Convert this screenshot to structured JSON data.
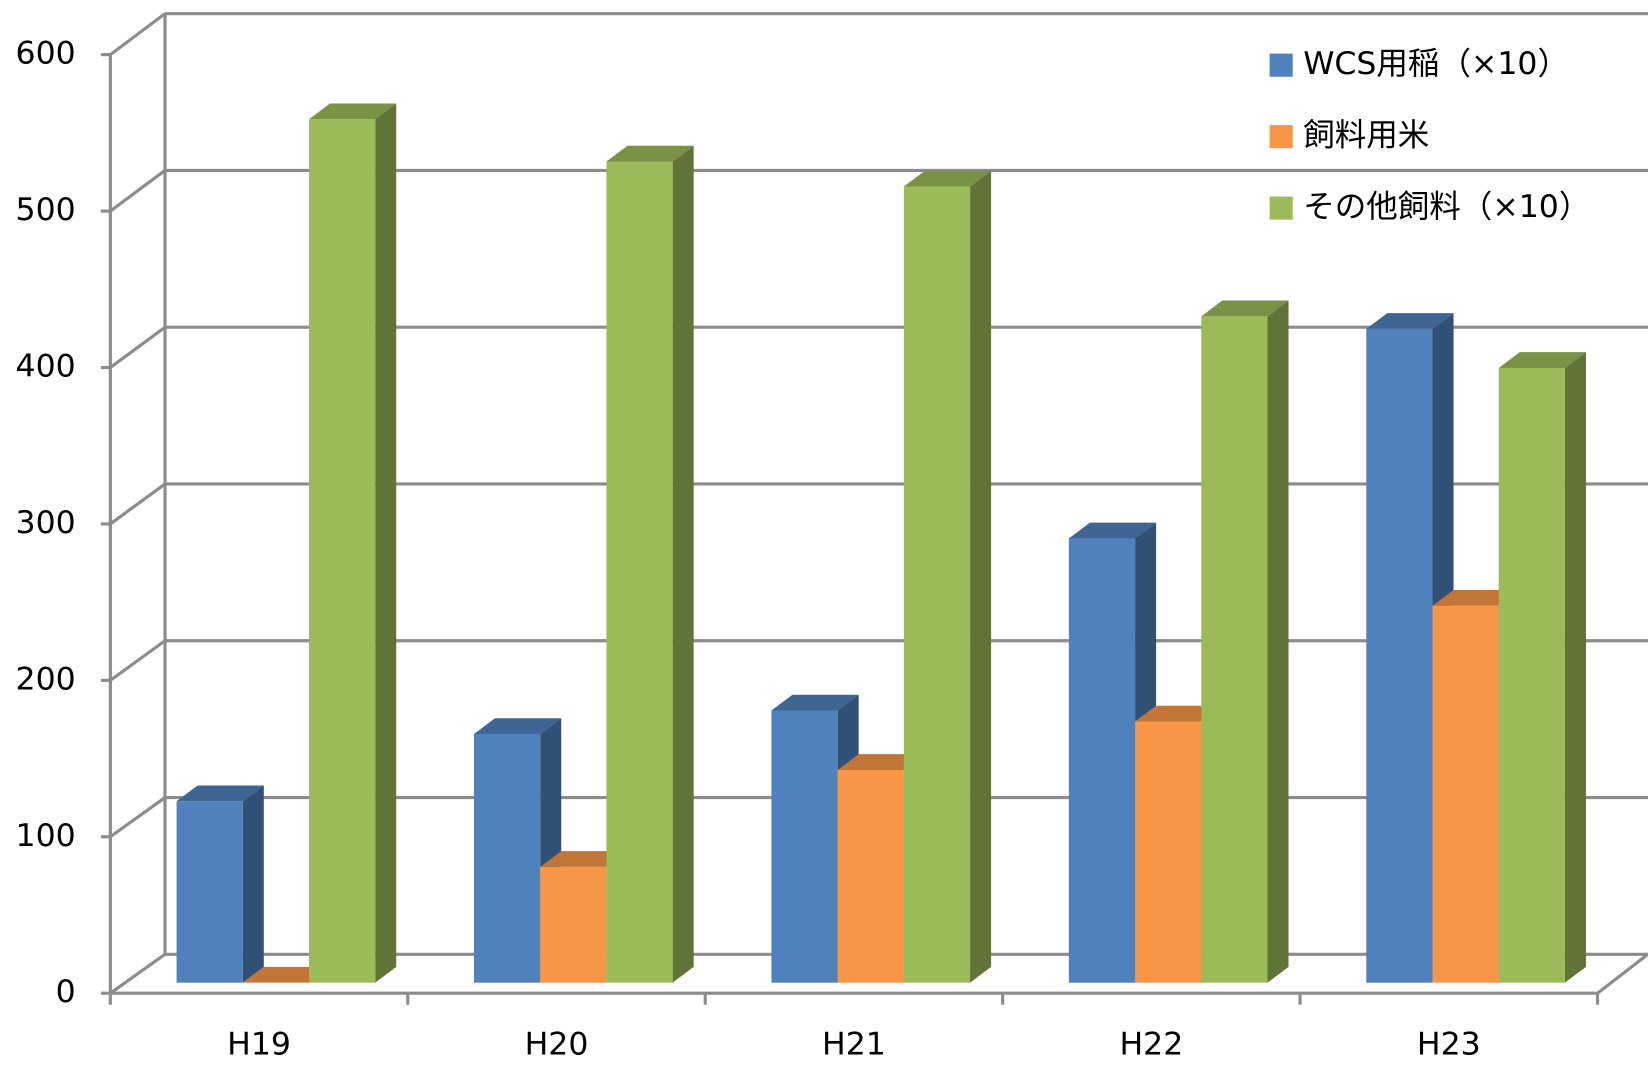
{
  "chart_data": {
    "type": "bar3d",
    "categories": [
      "H19",
      "H20",
      "H21",
      "H22",
      "H23"
    ],
    "series": [
      {
        "name": "WCS用稲（×10）",
        "color": "#4f81bd",
        "values": [
          116,
          159,
          174,
          284,
          418
        ]
      },
      {
        "name": "飼料用米",
        "color": "#f79646",
        "values": [
          0,
          74,
          136,
          167,
          241
        ]
      },
      {
        "name": "その他飼料（×10）",
        "color": "#9bbb59",
        "values": [
          552,
          525,
          509,
          426,
          393
        ]
      }
    ],
    "ylim": [
      0,
      600
    ],
    "yticks": [
      0,
      100,
      200,
      300,
      400,
      500,
      600
    ],
    "grid": true,
    "legend": "top-right"
  }
}
